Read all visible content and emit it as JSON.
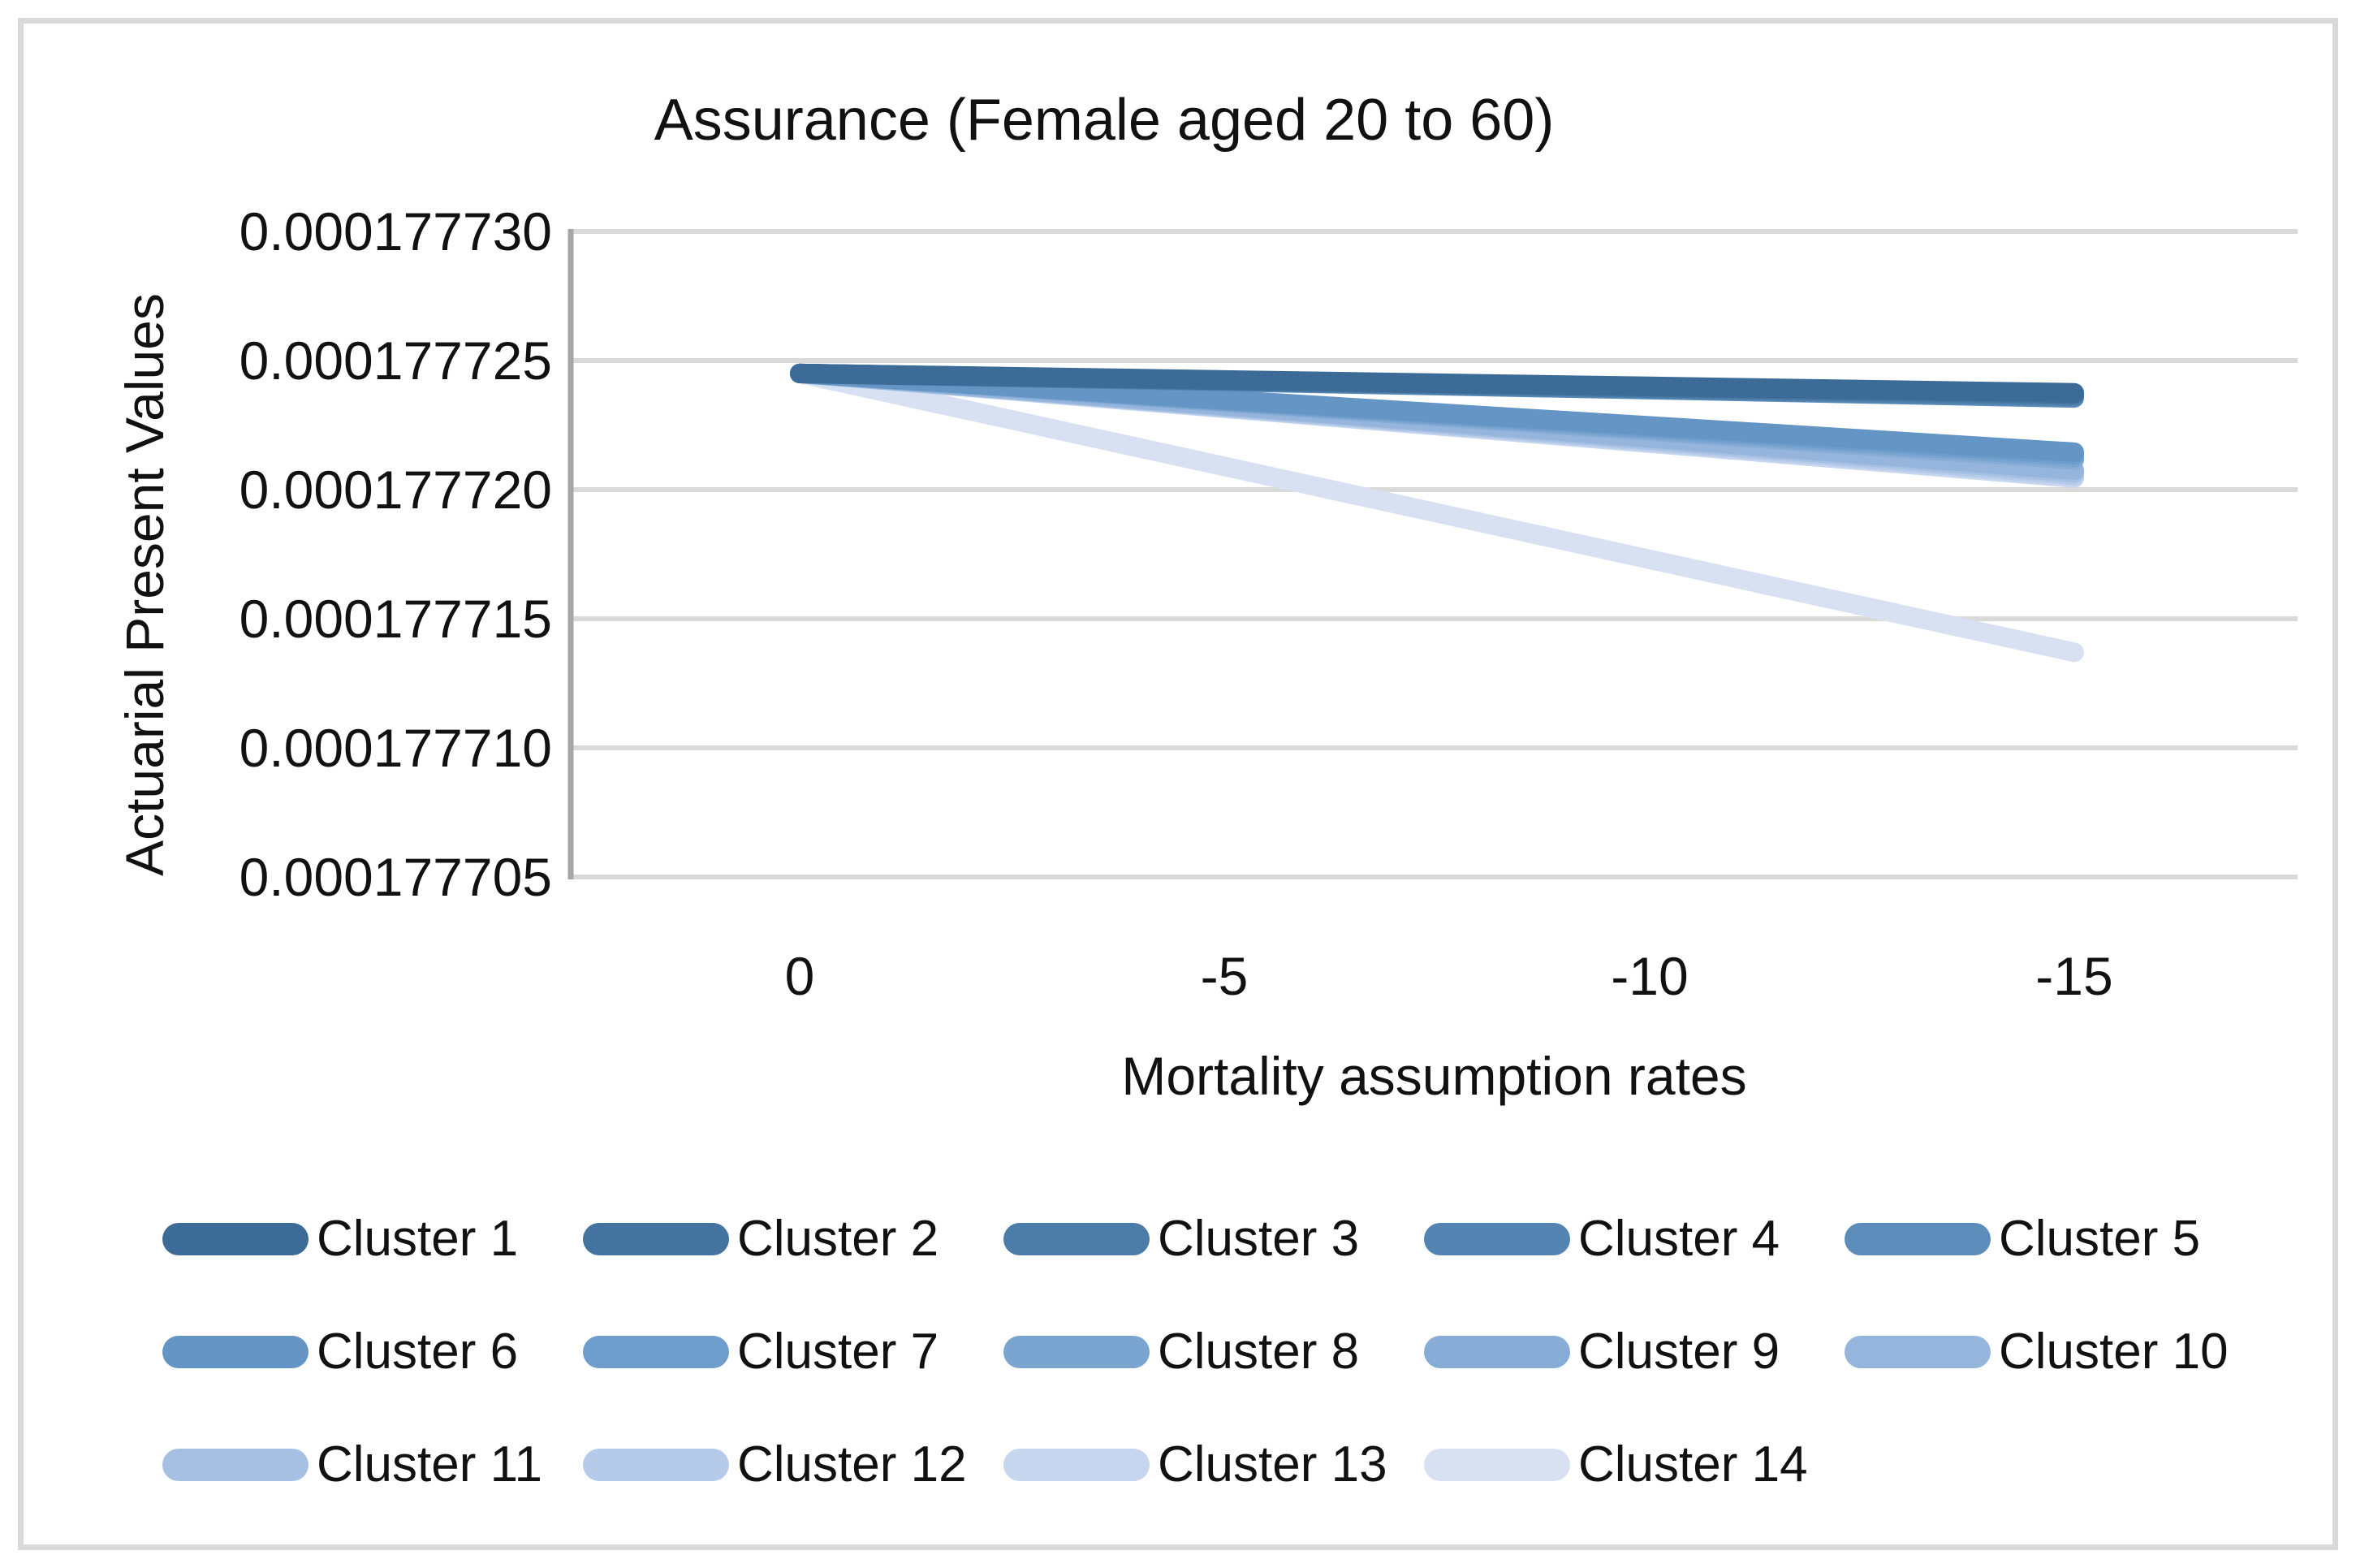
{
  "chart_data": {
    "type": "line",
    "title": "Assurance (Female aged 20 to 60)",
    "xlabel": "Mortality assumption rates",
    "ylabel": "Actuarial Present Values",
    "x_tick_labels": [
      "0",
      "-5",
      "-10",
      "-15"
    ],
    "x_values": [
      0,
      -5,
      -10,
      -15
    ],
    "y_tick_labels": [
      "0.000177730",
      "0.000177725",
      "0.000177720",
      "0.000177715",
      "0.000177710",
      "0.000177705"
    ],
    "ylim": [
      0.000177705,
      0.00017773
    ],
    "grid": true,
    "legend_position": "bottom",
    "colors": {
      "gridline": "#D9D9D9",
      "axis_line": "#A6A6A6",
      "frame_border": "#D9D9D9",
      "text": "#111111"
    },
    "series": [
      {
        "name": "Cluster 1",
        "color": "#3C6B98",
        "values": [
          0.0001777245,
          0.00017772425,
          0.000177724,
          0.00017772375
        ]
      },
      {
        "name": "Cluster 2",
        "color": "#44739F",
        "values": [
          0.0001777245,
          0.00017772423,
          0.00017772397,
          0.0001777237
        ]
      },
      {
        "name": "Cluster 3",
        "color": "#4C7CA8",
        "values": [
          0.0001777245,
          0.00017772422,
          0.00017772393,
          0.00017772365
        ]
      },
      {
        "name": "Cluster 4",
        "color": "#5484B1",
        "values": [
          0.0001777245,
          0.0001777242,
          0.0001777239,
          0.0001777236
        ]
      },
      {
        "name": "Cluster 5",
        "color": "#5C8DBA",
        "values": [
          0.0001777245,
          0.00017772418,
          0.00017772387,
          0.00017772355
        ]
      },
      {
        "name": "Cluster 6",
        "color": "#6495C4",
        "values": [
          0.0001777245,
          0.00017772348,
          0.00017772247,
          0.00017772145
        ]
      },
      {
        "name": "Cluster 7",
        "color": "#6F9DCB",
        "values": [
          0.0001777245,
          0.00017772345,
          0.0001777224,
          0.00017772135
        ]
      },
      {
        "name": "Cluster 8",
        "color": "#7BA5D1",
        "values": [
          0.0001777245,
          0.00017772342,
          0.00017772233,
          0.00017772125
        ]
      },
      {
        "name": "Cluster 9",
        "color": "#87ADD7",
        "values": [
          0.0001777245,
          0.00017772338,
          0.00017772227,
          0.00017772115
        ]
      },
      {
        "name": "Cluster 10",
        "color": "#96B5DD",
        "values": [
          0.0001777245,
          0.00017772325,
          0.000177722,
          0.00017772075
        ]
      },
      {
        "name": "Cluster 11",
        "color": "#A6C0E3",
        "values": [
          0.0001777245,
          0.00017772322,
          0.00017772193,
          0.00017772065
        ]
      },
      {
        "name": "Cluster 12",
        "color": "#B6CBE9",
        "values": [
          0.0001777245,
          0.00017772318,
          0.00017772187,
          0.00017772055
        ]
      },
      {
        "name": "Cluster 13",
        "color": "#C6D6EE",
        "values": [
          0.0001777245,
          0.00017772315,
          0.0001777218,
          0.00017772045
        ]
      },
      {
        "name": "Cluster 14",
        "color": "#D8E1F1",
        "values": [
          0.0001777245,
          0.0001777209,
          0.0001777173,
          0.0001777137
        ]
      }
    ]
  }
}
